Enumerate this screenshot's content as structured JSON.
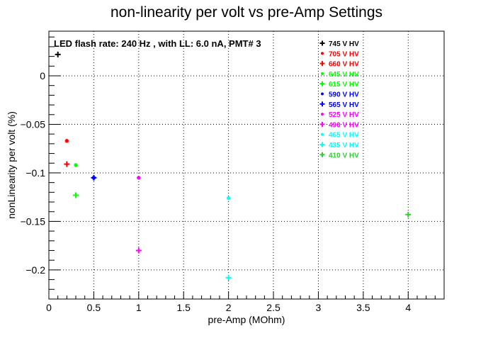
{
  "chart_data": {
    "type": "scatter",
    "title": "non-linearity per volt vs pre-Amp Settings",
    "xlabel": "pre-Amp (MOhm)",
    "ylabel": "nonLinearity per volt (%)",
    "annotation": "LED flash rate: 240 Hz , with LL: 6.0 nA, PMT# 3",
    "xlim": [
      0,
      4.4
    ],
    "ylim": [
      -0.23,
      0.046
    ],
    "grid": true,
    "legend_position": "top-right",
    "x_ticks": [
      {
        "value": 0,
        "label": "0"
      },
      {
        "value": 0.5,
        "label": "0.5"
      },
      {
        "value": 1,
        "label": "1"
      },
      {
        "value": 1.5,
        "label": "1.5"
      },
      {
        "value": 2,
        "label": "2"
      },
      {
        "value": 2.5,
        "label": "2.5"
      },
      {
        "value": 3,
        "label": "3"
      },
      {
        "value": 3.5,
        "label": "3.5"
      },
      {
        "value": 4,
        "label": "4"
      }
    ],
    "y_ticks": [
      {
        "value": 0,
        "label": "0"
      },
      {
        "value": -0.05,
        "label": "−0.05"
      },
      {
        "value": -0.1,
        "label": "−0.1"
      },
      {
        "value": -0.15,
        "label": "−0.15"
      },
      {
        "value": -0.2,
        "label": "−0.2"
      }
    ],
    "series": [
      {
        "name": "745 V HV",
        "color": "#000000",
        "marker": "plus",
        "points": [
          {
            "x": 0.1,
            "y": 0.022
          }
        ]
      },
      {
        "name": "705 V HV",
        "color": "#ff0000",
        "marker": "star",
        "points": [
          {
            "x": 0.2,
            "y": -0.067
          }
        ]
      },
      {
        "name": "660 V HV",
        "color": "#ff0000",
        "marker": "plus",
        "points": [
          {
            "x": 0.2,
            "y": -0.091
          }
        ]
      },
      {
        "name": "645 V HV",
        "color": "#00ff00",
        "marker": "star",
        "points": [
          {
            "x": 0.3,
            "y": -0.092
          }
        ]
      },
      {
        "name": "615 V HV",
        "color": "#00ff00",
        "marker": "plus",
        "points": [
          {
            "x": 0.3,
            "y": -0.123
          }
        ]
      },
      {
        "name": "590 V HV",
        "color": "#0000ff",
        "marker": "star",
        "points": [
          {
            "x": 0.5,
            "y": -0.105
          }
        ]
      },
      {
        "name": "565 V HV",
        "color": "#0000ff",
        "marker": "plus",
        "points": [
          {
            "x": 0.5,
            "y": -0.105
          }
        ]
      },
      {
        "name": "525 V HV",
        "color": "#ff00ff",
        "marker": "star",
        "points": [
          {
            "x": 1.0,
            "y": -0.105
          }
        ]
      },
      {
        "name": "490 V HV",
        "color": "#ff00ff",
        "marker": "plus",
        "points": [
          {
            "x": 1.0,
            "y": -0.18
          }
        ]
      },
      {
        "name": "465 V HV",
        "color": "#00ffff",
        "marker": "star",
        "points": [
          {
            "x": 2.0,
            "y": -0.126
          }
        ]
      },
      {
        "name": "435 V HV",
        "color": "#00ffff",
        "marker": "plus",
        "points": [
          {
            "x": 2.0,
            "y": -0.208
          }
        ]
      },
      {
        "name": "410 V HV",
        "color": "#33cc33",
        "marker": "plus",
        "points": [
          {
            "x": 4.0,
            "y": -0.143
          }
        ]
      }
    ]
  }
}
